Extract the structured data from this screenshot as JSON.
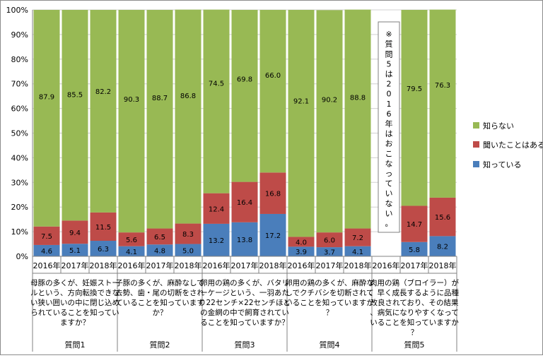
{
  "chart_data": {
    "type": "bar",
    "stacked": true,
    "percent_axis": true,
    "ylim": [
      0,
      100
    ],
    "y_ticks": [
      "0%",
      "10%",
      "20%",
      "30%",
      "40%",
      "50%",
      "60%",
      "70%",
      "80%",
      "90%",
      "100%"
    ],
    "categories": [
      "2016年",
      "2017年",
      "2018年",
      "2016年",
      "2017年",
      "2018年",
      "2016年",
      "2017年",
      "2018年",
      "2016年",
      "2017年",
      "2018年",
      "2016年",
      "2017年",
      "2018年"
    ],
    "series": [
      {
        "name": "知っている",
        "color": "#4a7ebb",
        "values": [
          4.6,
          5.1,
          6.3,
          4.1,
          4.8,
          5.0,
          13.2,
          13.8,
          17.2,
          3.9,
          3.7,
          4.1,
          null,
          5.8,
          8.2
        ]
      },
      {
        "name": "聞いたことはある",
        "color": "#be4b48",
        "values": [
          7.5,
          9.4,
          11.5,
          5.6,
          6.5,
          8.3,
          12.4,
          16.4,
          16.8,
          4.0,
          6.0,
          7.2,
          null,
          14.7,
          15.6
        ]
      },
      {
        "name": "知らない",
        "color": "#98b954",
        "values": [
          87.9,
          85.5,
          82.2,
          90.3,
          88.7,
          86.8,
          74.5,
          69.8,
          66.0,
          92.1,
          90.2,
          88.8,
          null,
          79.5,
          76.3
        ]
      }
    ],
    "legend_order": [
      "知らない",
      "聞いたことはある",
      "知っている"
    ],
    "legend_position": "right",
    "groups": [
      {
        "name": "質問1",
        "question": "母豚の多くが、妊娠ストールという、方向転換できない狭い囲いの中に閉じ込められていることを知っていますか？"
      },
      {
        "name": "質問2",
        "question": "子豚の多くが、麻酔なしで去勢、歯・尾の切断をされていることを知っていますか？"
      },
      {
        "name": "質問3",
        "question": "卵用の鶏の多くが、バタリーケージという、一羽あたり22センチ×22センチほどの金網の中で飼育されていることを知っていますか？"
      },
      {
        "name": "質問4",
        "question": "卵用の鶏の多くが、麻酔なしでクチバシを切断されていることを知っていますか？"
      },
      {
        "name": "質問5",
        "question": "肉用の鶏（ブロイラー）が、早く成長するように品種改良されており、その結果、病気になりやすくなっていることを知っていますか？"
      }
    ],
    "annotation": "※質問5は2016年はおこなっていない。"
  }
}
